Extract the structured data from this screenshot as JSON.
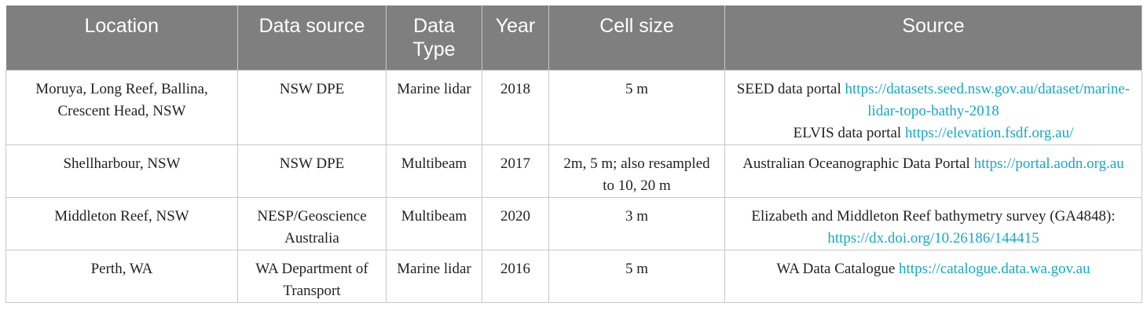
{
  "table": {
    "headers": [
      "Location",
      "Data source",
      "Data Type",
      "Year",
      "Cell size",
      "Source"
    ],
    "rows": [
      [
        "Moruya, Long Reef, Ballina, Crescent Head, NSW",
        "NSW DPE",
        "Marine lidar",
        "2018",
        "5 m",
        [
          {
            "label": "SEED data portal",
            "url": "https://datasets.seed.nsw.gov.au/dataset/marine-lidar-topo-bathy-2018"
          },
          {
            "label": "ELVIS data portal",
            "url": "https://elevation.fsdf.org.au/"
          }
        ]
      ],
      [
        "Shellharbour, NSW",
        "NSW DPE",
        "Multibeam",
        "2017",
        "2m, 5 m; also resampled to 10, 20 m",
        [
          {
            "label": "Australian Oceanographic Data Portal",
            "url": "https://portal.aodn.org.au"
          }
        ]
      ],
      [
        "Middleton Reef, NSW",
        "NESP/Geoscience Australia",
        "Multibeam",
        "2020",
        "3 m",
        [
          {
            "label": "Elizabeth and Middleton Reef bathymetry survey (GA4848):",
            "url": "https://dx.doi.org/10.26186/144415"
          }
        ]
      ],
      [
        "Perth, WA",
        "WA Department of Transport",
        "Marine lidar",
        "2016",
        "5 m",
        [
          {
            "label": "WA Data Catalogue",
            "url": "https://catalogue.data.wa.gov.au"
          }
        ]
      ]
    ]
  }
}
